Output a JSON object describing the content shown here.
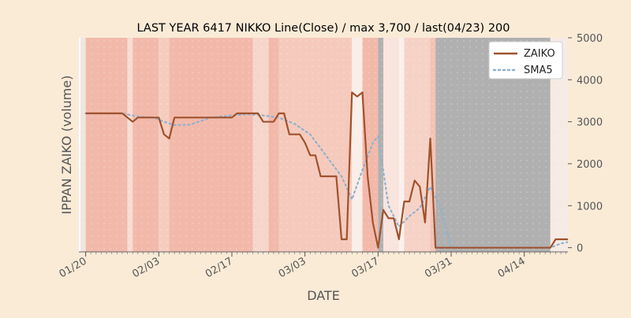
{
  "chart_data": {
    "type": "line",
    "title": "LAST YEAR 6417 NIKKO Line(Close) / max 3,700 / last(04/23) 200",
    "xlabel": "DATE",
    "ylabel": "IPPAN ZAIKO (volume)",
    "x_start": "2023-01-19",
    "x_ticks": [
      "01/20",
      "02/03",
      "02/17",
      "03/03",
      "03/17",
      "03/31",
      "04/14"
    ],
    "x_tick_dates": [
      "2023-01-20",
      "2023-02-03",
      "2023-02-17",
      "2023-03-03",
      "2023-03-17",
      "2023-03-31",
      "2023-04-14"
    ],
    "y_ticks": [
      "0",
      "1000",
      "2000",
      "3000",
      "4000",
      "5000"
    ],
    "ylim": [
      -100,
      5000
    ],
    "legend_position": "top-right",
    "colors": {
      "zaiko": "#a0522d",
      "sma5": "#8fb1cf",
      "axes_bg": "#ffffff",
      "figure_bg": "#faebd7"
    },
    "series": [
      {
        "name": "ZAIKO",
        "style": "solid",
        "x": [
          "2023-01-20",
          "2023-01-27",
          "2023-01-28",
          "2023-01-29",
          "2023-01-30",
          "2023-02-02",
          "2023-02-03",
          "2023-02-04",
          "2023-02-05",
          "2023-02-06",
          "2023-02-13",
          "2023-02-15",
          "2023-02-16",
          "2023-02-17",
          "2023-02-18",
          "2023-02-19",
          "2023-02-20",
          "2023-02-21",
          "2023-02-22",
          "2023-02-23",
          "2023-02-24",
          "2023-02-25",
          "2023-02-26",
          "2023-02-27",
          "2023-02-28",
          "2023-03-02",
          "2023-03-03",
          "2023-03-04",
          "2023-03-05",
          "2023-03-06",
          "2023-03-07",
          "2023-03-08",
          "2023-03-09",
          "2023-03-10",
          "2023-03-11",
          "2023-03-12",
          "2023-03-13",
          "2023-03-14",
          "2023-03-15",
          "2023-03-16",
          "2023-03-17",
          "2023-03-18",
          "2023-03-19",
          "2023-03-20",
          "2023-03-21",
          "2023-03-22",
          "2023-03-23",
          "2023-03-24",
          "2023-03-25",
          "2023-03-26",
          "2023-03-27",
          "2023-03-28",
          "2023-04-19",
          "2023-04-20",
          "2023-04-21",
          "2023-04-22",
          "2023-04-23",
          "2023-04-24",
          "2023-04-25"
        ],
        "y": [
          3200,
          3200,
          3100,
          3000,
          3100,
          3100,
          3100,
          2700,
          2600,
          3100,
          3100,
          3100,
          3100,
          3100,
          3200,
          3200,
          3200,
          3200,
          3200,
          3000,
          3000,
          3000,
          3200,
          3200,
          2700,
          2700,
          2500,
          2200,
          2200,
          1700,
          1700,
          1700,
          1700,
          200,
          200,
          3700,
          3600,
          3700,
          1700,
          600,
          0,
          900,
          700,
          700,
          200,
          1100,
          1100,
          1600,
          1450,
          600,
          2600,
          0,
          0,
          200,
          200,
          200,
          200,
          200,
          200
        ]
      },
      {
        "name": "SMA5",
        "style": "dotted",
        "x": [
          "2023-01-20",
          "2023-01-27",
          "2023-01-30",
          "2023-02-02",
          "2023-02-04",
          "2023-02-06",
          "2023-02-09",
          "2023-02-13",
          "2023-02-17",
          "2023-02-20",
          "2023-02-23",
          "2023-02-26",
          "2023-03-01",
          "2023-03-04",
          "2023-03-07",
          "2023-03-10",
          "2023-03-12",
          "2023-03-14",
          "2023-03-16",
          "2023-03-17",
          "2023-03-19",
          "2023-03-21",
          "2023-03-23",
          "2023-03-25",
          "2023-03-27",
          "2023-03-29",
          "2023-03-31",
          "2023-04-19",
          "2023-04-21",
          "2023-04-23",
          "2023-04-25"
        ],
        "y": [
          3200,
          3200,
          3120,
          3100,
          3000,
          2920,
          2930,
          3100,
          3150,
          3180,
          3150,
          3100,
          2950,
          2700,
          2200,
          1700,
          1150,
          1850,
          2500,
          2650,
          1000,
          500,
          750,
          950,
          1450,
          950,
          0,
          0,
          100,
          150,
          200
        ]
      }
    ],
    "background_bands": [
      {
        "from": "2023-01-19",
        "to": "2023-01-20",
        "color": "#ede6e0"
      },
      {
        "from": "2023-01-20",
        "to": "2023-01-28",
        "color": "#f2b9ab"
      },
      {
        "from": "2023-01-28",
        "to": "2023-01-29",
        "color": "#f8dcd3"
      },
      {
        "from": "2023-01-29",
        "to": "2023-02-03",
        "color": "#f2b9ab"
      },
      {
        "from": "2023-02-03",
        "to": "2023-02-05",
        "color": "#f5cdbf"
      },
      {
        "from": "2023-02-05",
        "to": "2023-02-21",
        "color": "#f2b9ab"
      },
      {
        "from": "2023-02-21",
        "to": "2023-02-24",
        "color": "#f6d6ca"
      },
      {
        "from": "2023-02-24",
        "to": "2023-02-26",
        "color": "#f2b9ab"
      },
      {
        "from": "2023-02-26",
        "to": "2023-03-12",
        "color": "#f5cabc"
      },
      {
        "from": "2023-03-12",
        "to": "2023-03-14",
        "color": "#faeee9"
      },
      {
        "from": "2023-03-14",
        "to": "2023-03-17",
        "color": "#f2b9ab"
      },
      {
        "from": "2023-03-17",
        "to": "2023-03-18",
        "color": "#b0b0b0"
      },
      {
        "from": "2023-03-18",
        "to": "2023-03-21",
        "color": "#f9e4de"
      },
      {
        "from": "2023-03-21",
        "to": "2023-03-22",
        "color": "#fbf0ec"
      },
      {
        "from": "2023-03-22",
        "to": "2023-03-27",
        "color": "#f6d2c6"
      },
      {
        "from": "2023-03-27",
        "to": "2023-03-28",
        "color": "#f2c3b5"
      },
      {
        "from": "2023-03-28",
        "to": "2023-04-19",
        "color": "#b0b0b0"
      },
      {
        "from": "2023-04-19",
        "to": "2023-04-26",
        "color": "#f6ebe4"
      }
    ]
  }
}
